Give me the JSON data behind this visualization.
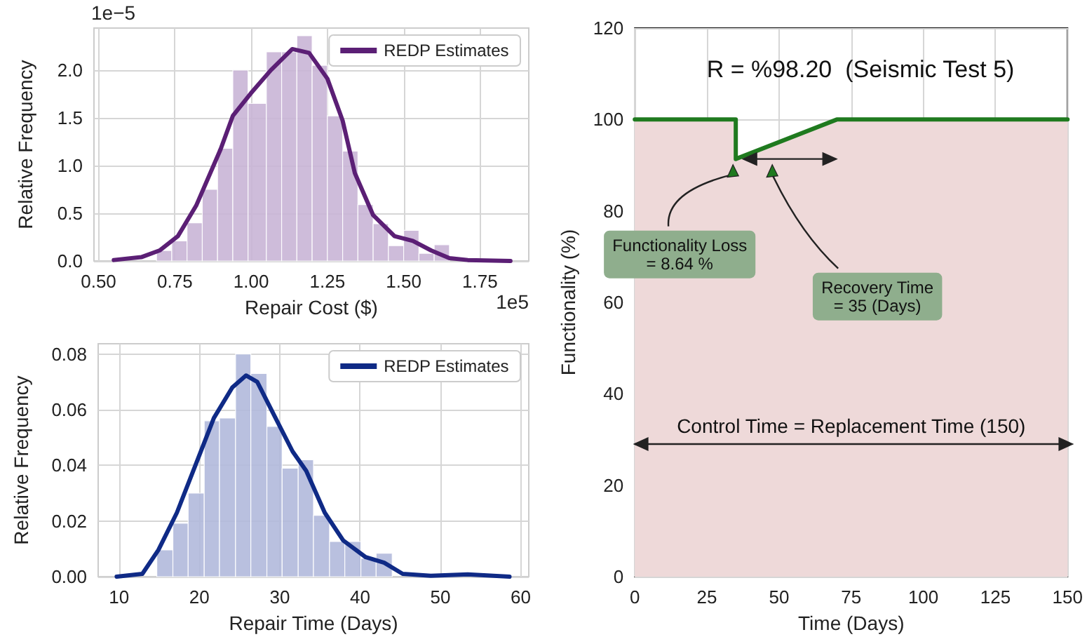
{
  "chart_data": [
    {
      "type": "histogram",
      "xlabel": "Repair Cost ($)",
      "ylabel": "Relative Frequency",
      "annotations": [
        "1e−5",
        "1e5"
      ],
      "bins": [
        0.69,
        0.74,
        0.79,
        0.84,
        0.89,
        0.94,
        0.99,
        1.05,
        1.1,
        1.15,
        1.2,
        1.25,
        1.3,
        1.35,
        1.4,
        1.45,
        1.5,
        1.55,
        1.6,
        1.65
      ],
      "values": [
        0.11,
        0.21,
        0.4,
        0.75,
        1.18,
        2.0,
        1.65,
        2.19,
        2.19,
        2.36,
        2.05,
        1.52,
        1.15,
        0.59,
        0.39,
        0.16,
        0.32,
        0.08,
        0.17
      ],
      "color": "#c9b5d6",
      "series": [
        {
          "type": "line",
          "name": "REDP Estimates",
          "color": "#5b1f75",
          "x": [
            0.55,
            0.64,
            0.7,
            0.76,
            0.82,
            0.9,
            0.94,
            1.0,
            1.065,
            1.135,
            1.19,
            1.25,
            1.3,
            1.34,
            1.4,
            1.47,
            1.53,
            1.59,
            1.65,
            1.71,
            1.85
          ],
          "values": [
            0.01,
            0.04,
            0.11,
            0.26,
            0.58,
            1.17,
            1.52,
            1.76,
            2.0,
            2.22,
            2.18,
            1.91,
            1.47,
            0.92,
            0.48,
            0.26,
            0.21,
            0.11,
            0.03,
            0.01,
            0.0
          ]
        }
      ],
      "xlim": [
        0.485,
        1.91
      ],
      "ylim": [
        0,
        2.44
      ],
      "xticks": [
        {
          "value": 0.5,
          "label": "0.50"
        },
        {
          "value": 0.75,
          "label": "0.75"
        },
        {
          "value": 1.0,
          "label": "1.00"
        },
        {
          "value": 1.25,
          "label": "1.25"
        },
        {
          "value": 1.5,
          "label": "1.50"
        },
        {
          "value": 1.75,
          "label": "1.75"
        }
      ],
      "yticks": [
        {
          "value": 0,
          "label": "0.0"
        },
        {
          "value": 0.5,
          "label": "0.5"
        },
        {
          "value": 1,
          "label": "1.0"
        },
        {
          "value": 1.5,
          "label": "1.5"
        },
        {
          "value": 2,
          "label": "2.0"
        }
      ],
      "grid": true,
      "legend": "top right"
    },
    {
      "type": "histogram",
      "xlabel": "Repair Time (Days)",
      "ylabel": "Relative Frequency",
      "bins": [
        14.7,
        16.7,
        18.6,
        20.6,
        22.5,
        24.5,
        26.4,
        28.4,
        30.3,
        32.3,
        34.2,
        36.2,
        38.1,
        40.1,
        42.0,
        44.0
      ],
      "values": [
        0.0096,
        0.0192,
        0.03,
        0.056,
        0.057,
        0.08,
        0.073,
        0.054,
        0.039,
        0.042,
        0.022,
        0.0126,
        0.0126,
        0.0066,
        0.0084
      ],
      "color": "#b1b9db",
      "series": [
        {
          "type": "line",
          "name": "REDP Estimates",
          "color": "#0f2a86",
          "x": [
            9.7,
            12.9,
            14.9,
            17.2,
            19.5,
            21.8,
            24.1,
            25.8,
            27.2,
            29.3,
            31.6,
            33.3,
            35.6,
            37.9,
            40.7,
            43.0,
            45.3,
            48.8,
            53.4,
            58.6
          ],
          "values": [
            0,
            0.001,
            0.0096,
            0.023,
            0.04,
            0.057,
            0.068,
            0.0723,
            0.07,
            0.058,
            0.045,
            0.038,
            0.023,
            0.013,
            0.007,
            0.005,
            0.001,
            0.0003,
            0.0008,
            0
          ]
        }
      ],
      "xlim": [
        7.4,
        61.0
      ],
      "ylim": [
        0,
        0.0837
      ],
      "xticks": [
        10,
        20,
        30,
        40,
        50,
        60
      ],
      "yticks": [
        {
          "value": 0,
          "label": "0.00"
        },
        {
          "value": 0.02,
          "label": "0.02"
        },
        {
          "value": 0.04,
          "label": "0.04"
        },
        {
          "value": 0.06,
          "label": "0.06"
        },
        {
          "value": 0.08,
          "label": "0.08"
        }
      ],
      "grid": true,
      "legend": "top right"
    },
    {
      "type": "line",
      "title": "R = %98.20  (Seismic Test 5)",
      "xlabel": "Time (Days)",
      "ylabel": "Functionality (%)",
      "series": [
        {
          "type": "area",
          "color": "#1f7a1f",
          "x": [
            0,
            35,
            35,
            70,
            150
          ],
          "values": [
            100,
            100,
            91.36,
            100,
            100
          ]
        }
      ],
      "color": "#eed9d9",
      "annotations": [
        "Functionality Loss\n= 8.64 %",
        "Recovery Time\n= 35 (Days)"
      ],
      "ref_lines": [
        {
          "axis": "y",
          "value": 29,
          "label": "Control Time = Replacement Time (150)",
          "color": "#222222"
        }
      ],
      "xlim": [
        0,
        150
      ],
      "ylim": [
        0,
        120
      ],
      "xticks": [
        0,
        25,
        50,
        75,
        100,
        125,
        150
      ],
      "yticks": [
        0,
        20,
        40,
        60,
        80,
        100,
        120
      ],
      "grid": true,
      "legend": false,
      "line_style": "solid",
      "marker": "none"
    }
  ]
}
